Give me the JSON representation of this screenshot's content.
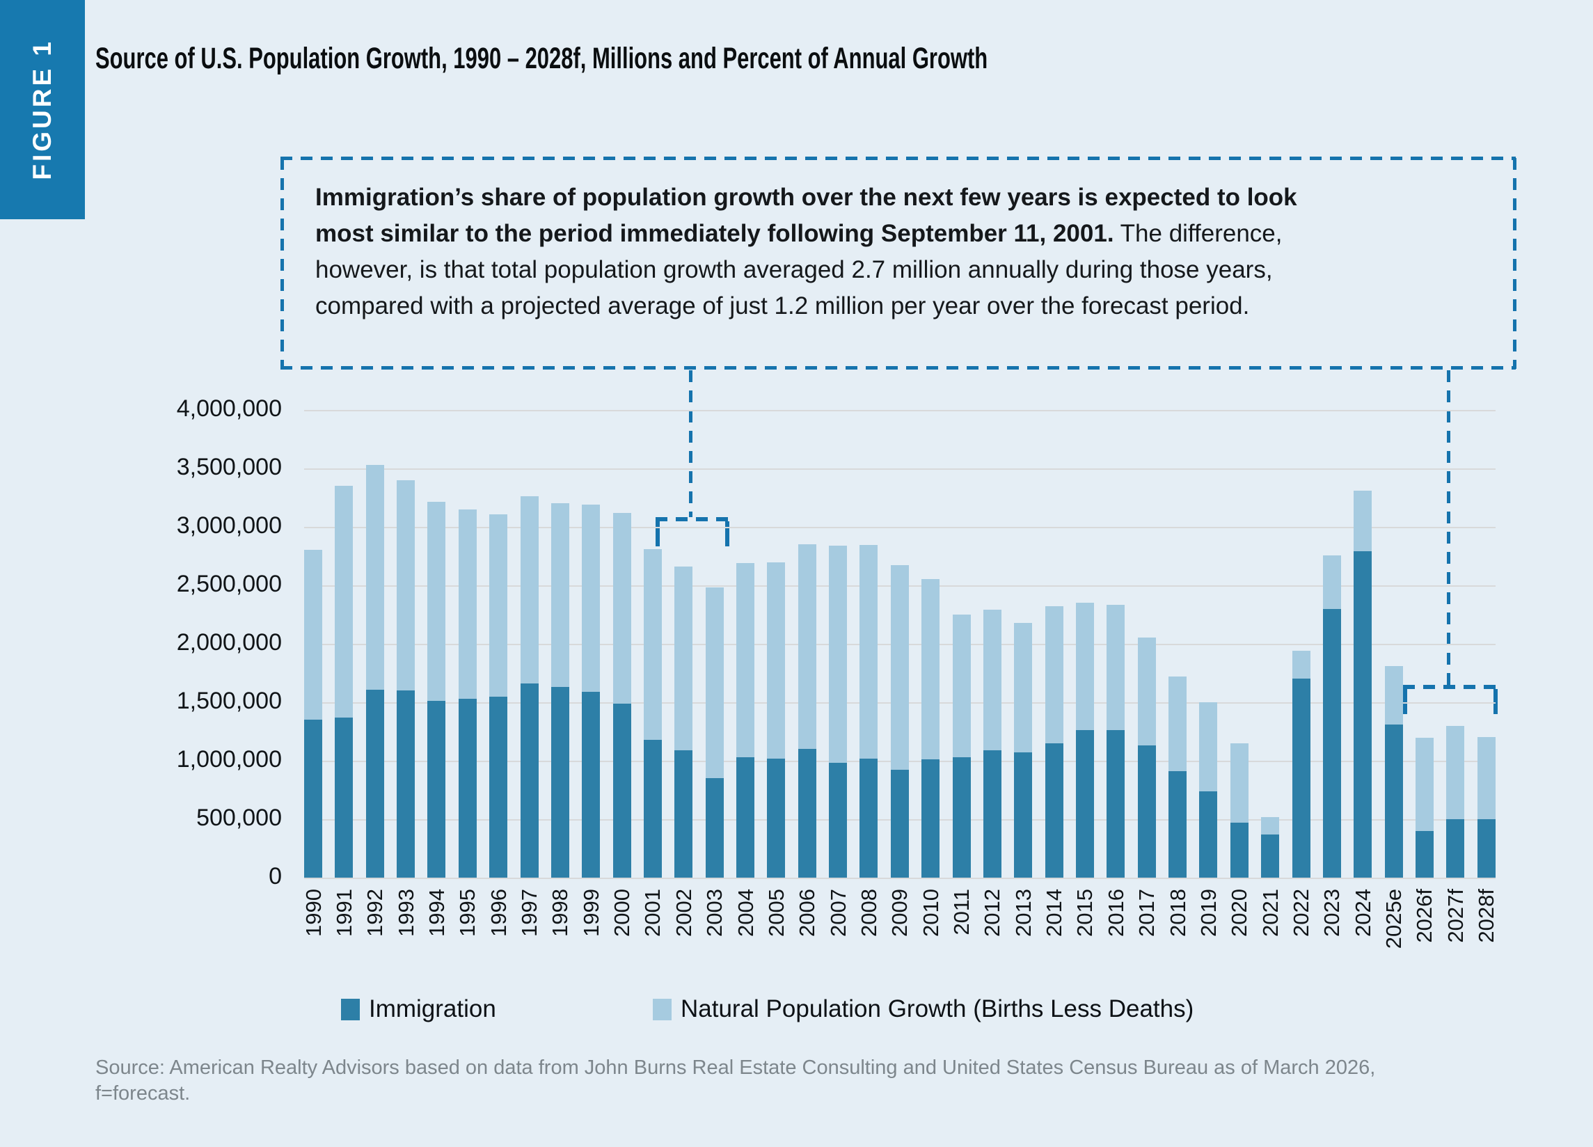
{
  "figure_label": "FIGURE 1",
  "title": "Source of U.S. Population Growth, 1990 – 2028f, Millions and Percent of Annual Growth",
  "callout": {
    "lines": [
      {
        "bold": "Immigration’s share of population growth over the next few years is expected to look",
        "regular": ""
      },
      {
        "bold": "most similar to the period immediately following September 11, 2001.",
        "regular": " The difference,"
      },
      {
        "bold": "",
        "regular": "however, is that total population growth averaged 2.7 million annually during those years,"
      },
      {
        "bold": "",
        "regular": "compared with a projected average of just 1.2 million per year over the forecast period."
      }
    ],
    "connects_to": [
      "2001–2002",
      "2026f–2028f"
    ]
  },
  "legend": {
    "items": [
      {
        "label": "Immigration",
        "color": "#2d7fa7"
      },
      {
        "label": "Natural Population Growth (Births Less Deaths)",
        "color": "#a6cbe0"
      }
    ]
  },
  "source": {
    "line1": "Source: American Realty Advisors based on data from John Burns Real Estate Consulting and  United States Census Bureau as of March 2026,",
    "line2": "f=forecast."
  },
  "colors": {
    "background": "#e5eef5",
    "badge": "#1779af",
    "immigration": "#2d7fa7",
    "natural_growth": "#a6cbe0",
    "dashed_connector": "#1573ad",
    "gridline": "#d8d9da",
    "source_text": "#7d868c"
  },
  "chart_data": {
    "type": "bar",
    "stacked": true,
    "title": "Source of U.S. Population Growth, 1990 – 2028f, Millions and Percent of Annual Growth",
    "xlabel": "",
    "ylabel": "",
    "ylim": [
      0,
      4000000
    ],
    "grid": true,
    "legend_position": "bottom",
    "y_ticks": [
      "4,000,000",
      "3,500,000",
      "3,000,000",
      "2,500,000",
      "2,000,000",
      "1,500,000",
      "1,000,000",
      "500,000",
      "0"
    ],
    "categories": [
      "1990",
      "1991",
      "1992",
      "1993",
      "1994",
      "1995",
      "1996",
      "1997",
      "1998",
      "1999",
      "2000",
      "2001",
      "2002",
      "2003",
      "2004",
      "2005",
      "2006",
      "2007",
      "2008",
      "2009",
      "2010",
      "2011",
      "2012",
      "2013",
      "2014",
      "2015",
      "2016",
      "2017",
      "2018",
      "2019",
      "2020",
      "2021",
      "2022",
      "2023",
      "2024",
      "2025e",
      "2026f",
      "2027f",
      "2028f"
    ],
    "series": [
      {
        "name": "Immigration",
        "color": "#2d7fa7",
        "values": [
          1350000,
          1370000,
          1610000,
          1600000,
          1510000,
          1530000,
          1550000,
          1660000,
          1630000,
          1590000,
          1490000,
          1180000,
          1090000,
          850000,
          1030000,
          1020000,
          1100000,
          980000,
          1020000,
          920000,
          1010000,
          1030000,
          1090000,
          1070000,
          1150000,
          1260000,
          1260000,
          1130000,
          910000,
          740000,
          470000,
          370000,
          1700000,
          2300000,
          2790000,
          1310000,
          400000,
          500000,
          500000
        ]
      },
      {
        "name": "Natural Population Growth (Births Less Deaths)",
        "color": "#a6cbe0",
        "values": [
          1450000,
          1980000,
          1920000,
          1800000,
          1700000,
          1620000,
          1560000,
          1600000,
          1570000,
          1600000,
          1630000,
          1630000,
          1570000,
          1630000,
          1660000,
          1680000,
          1750000,
          1860000,
          1830000,
          1750000,
          1540000,
          1220000,
          1200000,
          1110000,
          1170000,
          1090000,
          1070000,
          920000,
          810000,
          760000,
          680000,
          150000,
          240000,
          460000,
          520000,
          500000,
          800000,
          800000,
          700000
        ]
      }
    ]
  }
}
